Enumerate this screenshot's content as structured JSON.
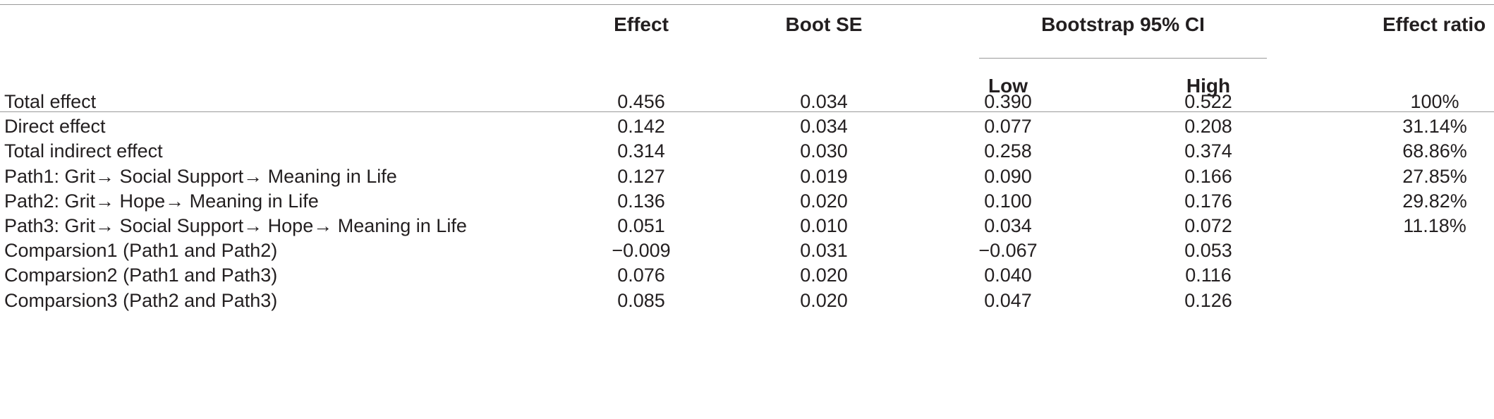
{
  "headers": {
    "effect": "Effect",
    "boot_se": "Boot SE",
    "ci_group": "Bootstrap 95% CI",
    "low": "Low",
    "high": "High",
    "effect_ratio": "Effect ratio"
  },
  "rows": [
    {
      "label": "Total effect",
      "effect": "0.456",
      "se": "0.034",
      "low": "0.390",
      "high": "0.522",
      "ratio": "100%"
    },
    {
      "label": "Direct effect",
      "effect": "0.142",
      "se": "0.034",
      "low": "0.077",
      "high": "0.208",
      "ratio": "31.14%"
    },
    {
      "label": "Total indirect effect",
      "effect": "0.314",
      "se": "0.030",
      "low": "0.258",
      "high": "0.374",
      "ratio": "68.86%"
    },
    {
      "label": "Path1: Grit→ Social Support→ Meaning in Life",
      "effect": "0.127",
      "se": "0.019",
      "low": "0.090",
      "high": "0.166",
      "ratio": "27.85%"
    },
    {
      "label": "Path2: Grit→ Hope→ Meaning in Life",
      "effect": "0.136",
      "se": "0.020",
      "low": "0.100",
      "high": "0.176",
      "ratio": "29.82%"
    },
    {
      "label": "Path3: Grit→ Social Support→ Hope→ Meaning in Life",
      "effect": "0.051",
      "se": "0.010",
      "low": "0.034",
      "high": "0.072",
      "ratio": "11.18%"
    },
    {
      "label": "Comparsion1 (Path1 and Path2)",
      "effect": "−0.009",
      "se": "0.031",
      "low": "−0.067",
      "high": "0.053",
      "ratio": ""
    },
    {
      "label": "Comparsion2 (Path1 and Path3)",
      "effect": "0.076",
      "se": "0.020",
      "low": "0.040",
      "high": "0.116",
      "ratio": ""
    },
    {
      "label": "Comparsion3 (Path2 and Path3)",
      "effect": "0.085",
      "se": "0.020",
      "low": "0.047",
      "high": "0.126",
      "ratio": ""
    }
  ]
}
